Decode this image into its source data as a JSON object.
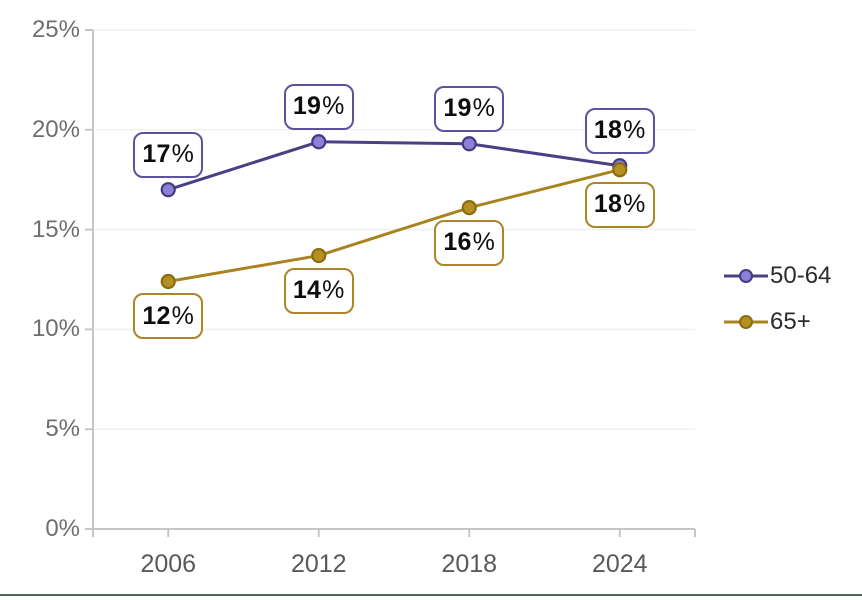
{
  "chart_data": {
    "type": "line",
    "title": "",
    "xlabel": "",
    "ylabel": "",
    "categories": [
      "2006",
      "2012",
      "2018",
      "2024"
    ],
    "series": [
      {
        "name": "50-64",
        "values": [
          17,
          19,
          19,
          18
        ],
        "point_labels": [
          "17%",
          "19%",
          "19%",
          "18%"
        ],
        "plotted_values": [
          17.0,
          19.4,
          19.3,
          18.2
        ],
        "label_placement": "above",
        "colors": {
          "line": "#4a4086",
          "marker_fill": "#8c80d8",
          "marker_stroke": "#443b7e",
          "label_box_border": "#5a549c"
        }
      },
      {
        "name": "65+",
        "values": [
          12,
          14,
          16,
          18
        ],
        "point_labels": [
          "12%",
          "14%",
          "16%",
          "18%"
        ],
        "plotted_values": [
          12.4,
          13.7,
          16.1,
          18.0
        ],
        "label_placement": "below",
        "colors": {
          "line": "#a9841e",
          "marker_fill": "#b3901f",
          "marker_stroke": "#8a6c12",
          "label_box_border": "#ab8526"
        }
      }
    ],
    "ylim": [
      0,
      25
    ],
    "ytick_step": 5,
    "ytick_labels": [
      "0%",
      "5%",
      "10%",
      "15%",
      "20%",
      "25%"
    ],
    "grid": true,
    "legend": {
      "position": "right",
      "entries": [
        "50-64",
        "65+"
      ]
    }
  },
  "styles": {
    "axis_line_color": "#c6c6c6",
    "gridline_color": "#f0f0f0",
    "ytick_label_color": "#6e6e6e",
    "xtick_label_color": "#595959",
    "legend_text_color": "#2b2b2b",
    "data_label_text_color": "#0d0d0d",
    "label_box_background": "#ffffff",
    "bottom_rule_color": "#4a6b55"
  }
}
